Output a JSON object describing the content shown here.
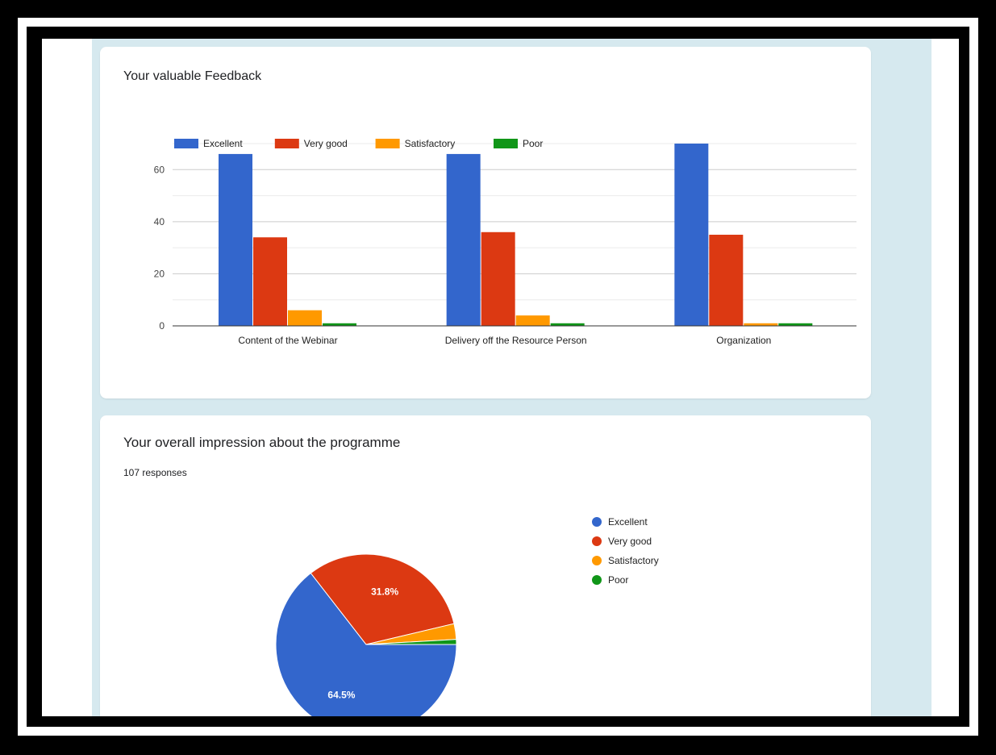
{
  "colors": {
    "excellent": "#3366cc",
    "very_good": "#dc3912",
    "satisfactory": "#ff9900",
    "poor": "#109618"
  },
  "chart_data": [
    {
      "type": "bar",
      "title": "Your valuable Feedback",
      "categories": [
        "Content of the Webinar",
        "Delivery off the Resource Person",
        "Organization"
      ],
      "series": [
        {
          "name": "Excellent",
          "values": [
            66,
            66,
            70
          ]
        },
        {
          "name": "Very good",
          "values": [
            34,
            36,
            35
          ]
        },
        {
          "name": "Satisfactory",
          "values": [
            6,
            4,
            1
          ]
        },
        {
          "name": "Poor",
          "values": [
            1,
            1,
            1
          ]
        }
      ],
      "yticks": [
        0,
        20,
        40,
        60
      ],
      "ylim": [
        0,
        70
      ],
      "grid": true,
      "legend": "top-left"
    },
    {
      "type": "pie",
      "title": "Your overall impression about the programme",
      "subtitle": "107 responses",
      "labels": [
        "Excellent",
        "Very good",
        "Satisfactory",
        "Poor"
      ],
      "values": [
        64.5,
        31.8,
        2.8,
        0.9
      ],
      "slice_labels": [
        "64.5%",
        "31.8%",
        "",
        ""
      ],
      "legend": "right"
    }
  ]
}
